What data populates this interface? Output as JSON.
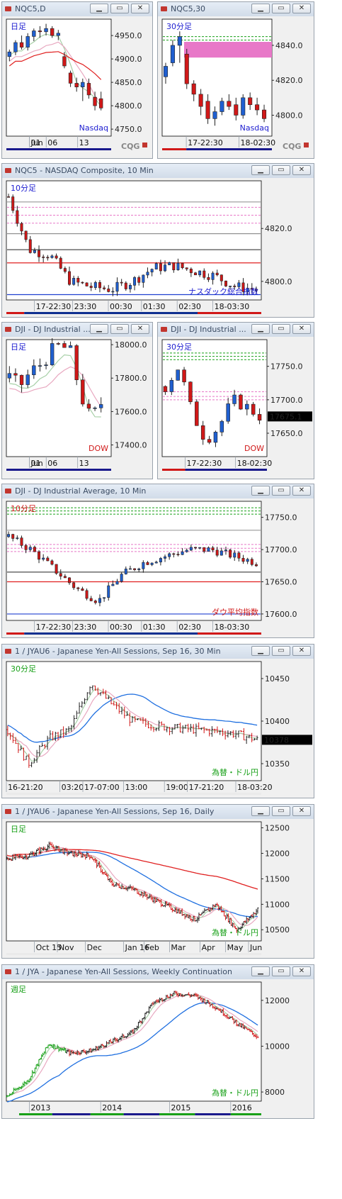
{
  "windows": [
    {
      "id": "w1",
      "title": "NQC5,D",
      "buttons": [
        "▁",
        "▭",
        "✕"
      ],
      "chart_data": {
        "type": "candlestick",
        "label": "日足",
        "legend": "Nasdaq",
        "yticks": [
          "4950.0",
          "4900.0",
          "4850.0",
          "4800.0",
          "4750.0"
        ],
        "ylim": [
          4735,
          4985
        ],
        "xticks": [
          "Jun",
          "01",
          "06",
          "13"
        ],
        "series": [
          {
            "name": "sma-short",
            "color": "#a0c8a0"
          },
          {
            "name": "sma-long",
            "color": "#e8a0b0"
          },
          {
            "name": "sma-longest",
            "color": "#e02020"
          }
        ],
        "candles": [
          [
            4905,
            4920,
            4895,
            4915
          ],
          [
            4915,
            4940,
            4908,
            4935
          ],
          [
            4935,
            4950,
            4920,
            4925
          ],
          [
            4925,
            4955,
            4918,
            4948
          ],
          [
            4948,
            4965,
            4938,
            4960
          ],
          [
            4960,
            4970,
            4945,
            4958
          ],
          [
            4958,
            4975,
            4950,
            4965
          ],
          [
            4965,
            4970,
            4945,
            4950
          ],
          [
            4950,
            4962,
            4940,
            4955
          ],
          [
            4905,
            4915,
            4880,
            4885
          ],
          [
            4870,
            4875,
            4840,
            4848
          ],
          [
            4848,
            4860,
            4830,
            4840
          ],
          [
            4840,
            4858,
            4810,
            4850
          ],
          [
            4848,
            4858,
            4815,
            4823
          ],
          [
            4818,
            4830,
            4790,
            4800
          ],
          [
            4815,
            4830,
            4790,
            4795
          ]
        ]
      }
    },
    {
      "id": "w2",
      "title": "NQC5,30",
      "buttons": [
        "▁",
        "▭",
        "✕"
      ],
      "chart_data": {
        "type": "candlestick",
        "label": "30分足",
        "legend": "Nasdaq",
        "yticks": [
          "4840.0",
          "4820.0",
          "4800.0"
        ],
        "ylim": [
          4788,
          4855
        ],
        "xticks": [
          "17-22:30",
          "18-02:30"
        ],
        "candles": [
          [
            4822,
            4830,
            4818,
            4828
          ],
          [
            4830,
            4843,
            4828,
            4840
          ],
          [
            4840,
            4848,
            4830,
            4845
          ],
          [
            4835,
            4838,
            4815,
            4818
          ],
          [
            4818,
            4820,
            4808,
            4812
          ],
          [
            4812,
            4815,
            4800,
            4805
          ],
          [
            4808,
            4812,
            4795,
            4798
          ],
          [
            4798,
            4805,
            4794,
            4802
          ],
          [
            4802,
            4810,
            4800,
            4808
          ],
          [
            4808,
            4812,
            4803,
            4805
          ],
          [
            4806,
            4810,
            4797,
            4800
          ],
          [
            4800,
            4812,
            4798,
            4810
          ],
          [
            4810,
            4813,
            4803,
            4806
          ],
          [
            4806,
            4810,
            4800,
            4803
          ],
          [
            4803,
            4806,
            4796,
            4798
          ]
        ],
        "bands": [
          {
            "y": 4845,
            "color": "#18a018"
          },
          {
            "y": 4843,
            "color": "#18a018"
          }
        ]
      }
    },
    {
      "id": "w3",
      "title": "NQC5 - NASDAQ Composite, 10 Min",
      "buttons": [
        "▁",
        "▭",
        "✕"
      ],
      "chart_data": {
        "type": "candlestick",
        "label": "10分足",
        "legend": "ナスダック総合指数",
        "yticks": [
          "4820.0",
          "4800.0"
        ],
        "ylim": [
          4793,
          4838
        ],
        "xticks": [
          "17-22:30",
          "23:30",
          "00:30",
          "01:30",
          "02:30",
          "18-03:30"
        ]
      }
    },
    {
      "id": "w4",
      "title": "DJI - DJ Industrial Average, D",
      "titleShown": "DJI - DJ Industrial ...",
      "buttons": [
        "▁",
        "▭",
        "✕"
      ],
      "chart_data": {
        "type": "candlestick",
        "label": "日足",
        "legend": "DOW",
        "yticks": [
          "18000.0",
          "17800.0",
          "17600.0",
          "17400.0"
        ],
        "ylim": [
          17330,
          18030
        ],
        "xticks": [
          "Jun",
          "01",
          "06",
          "13"
        ]
      }
    },
    {
      "id": "w5",
      "title": "DJI - DJ Industrial Average, 30",
      "titleShown": "DJI - DJ Industrial ...",
      "buttons": [
        "▁",
        "▭",
        "✕"
      ],
      "chart_data": {
        "type": "candlestick",
        "label": "30分足",
        "legend": "DOW",
        "yticks": [
          "17750.0",
          "17700.0",
          "17650.0"
        ],
        "last_price": "17675.1",
        "ylim": [
          17615,
          17790
        ],
        "xticks": [
          "17-22:30",
          "18-02:30"
        ]
      }
    },
    {
      "id": "w6",
      "title": "DJI - DJ Industrial Average, 10 Min",
      "buttons": [
        "▁",
        "▭",
        "✕"
      ],
      "chart_data": {
        "type": "candlestick",
        "label": "10分足",
        "legend": "ダウ平均指数",
        "yticks": [
          "17750.0",
          "17700.0",
          "17650.0",
          "17600.0"
        ],
        "ylim": [
          17590,
          17775
        ],
        "xticks": [
          "17-22:30",
          "23:30",
          "00:30",
          "01:30",
          "02:30",
          "18-03:30"
        ]
      }
    },
    {
      "id": "w7",
      "title": "1 / JYAU6 - Japanese Yen-All Sessions, Sep 16, 30 Min",
      "buttons": [
        "▁",
        "▭",
        "✕"
      ],
      "chart_data": {
        "type": "ohlc-bars",
        "label": "30分足",
        "legend": "為替・ドル円",
        "yticks": [
          "10450",
          "10400",
          "10350"
        ],
        "last_price": "10378",
        "ylim": [
          10330,
          10470
        ],
        "xticks": [
          "16-21:20",
          "03:20",
          "17-07:00",
          "13:00",
          "19:00",
          "17-21:20",
          "18-03:20"
        ]
      }
    },
    {
      "id": "w8",
      "title": "1 / JYAU6 - Japanese Yen-All Sessions, Sep 16, Daily",
      "buttons": [
        "▁",
        "▭",
        "✕"
      ],
      "chart_data": {
        "type": "ohlc-bars",
        "label": "日足",
        "legend": "為替・ドル円",
        "yticks": [
          "12500",
          "12000",
          "11500",
          "11000",
          "10500"
        ],
        "ylim": [
          10280,
          12620
        ],
        "xticks": [
          "Oct 15",
          "Nov",
          "Dec",
          "Jan 16",
          "Feb",
          "Mar",
          "Apr",
          "May",
          "Jun"
        ]
      }
    },
    {
      "id": "w9",
      "title": "1 / JYA - Japanese Yen-All Sessions, Weekly Continuation",
      "buttons": [
        "▁",
        "▭",
        "✕"
      ],
      "chart_data": {
        "type": "ohlc-bars",
        "label": "週足",
        "legend": "為替・ドル円",
        "yticks": [
          "12000",
          "10000",
          "8000"
        ],
        "ylim": [
          7600,
          12800
        ],
        "xticks": [
          "2013",
          "2014",
          "2015",
          "2016"
        ]
      }
    }
  ],
  "brand": "CQG",
  "colors": {
    "up": "#1f5fd0",
    "down": "#d01818",
    "sma_green": "#a8d0a8",
    "sma_pink": "#e8a8c0",
    "sma_red": "#e02020",
    "sma_blue": "#2070e0",
    "legend": "#1c1cd0",
    "label": "#1c1cd0"
  }
}
